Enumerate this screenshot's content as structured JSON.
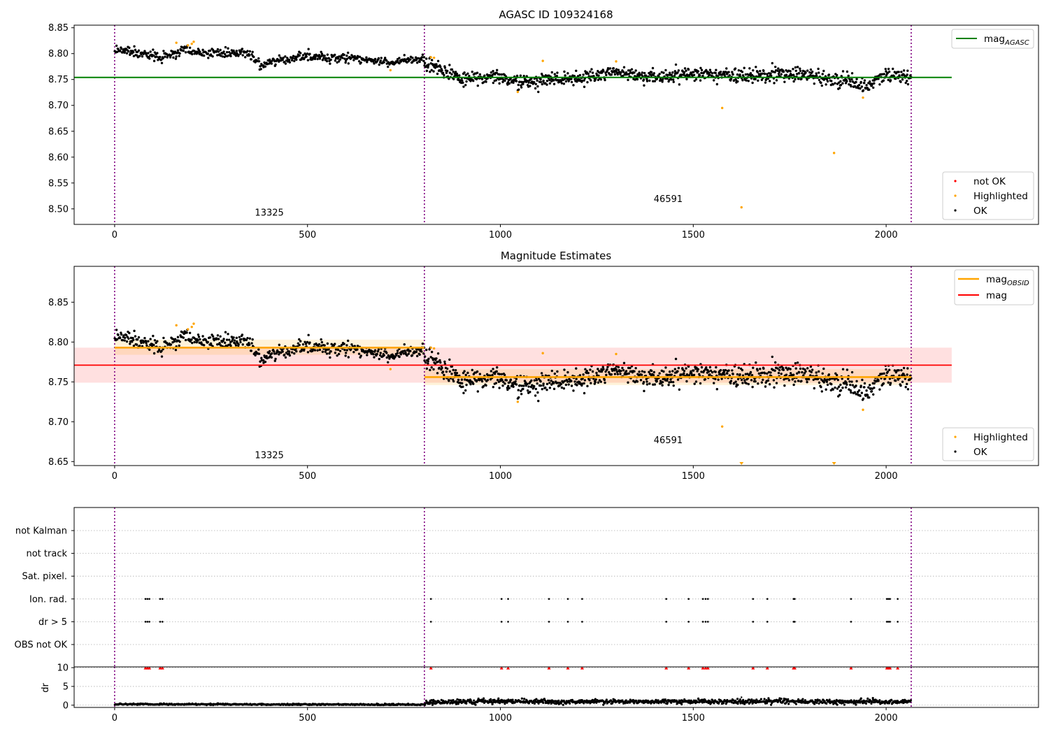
{
  "chart_data": [
    {
      "type": "scatter",
      "title": "AGASC ID 109324168",
      "xlim": [
        -105,
        2395
      ],
      "ylim": [
        8.47,
        8.855
      ],
      "xticks": [
        0,
        500,
        1000,
        1500,
        2000
      ],
      "yticks": [
        8.5,
        8.55,
        8.6,
        8.65,
        8.7,
        8.75,
        8.8,
        8.85
      ],
      "ytick_labels": [
        "8.50",
        "8.55",
        "8.60",
        "8.65",
        "8.70",
        "8.75",
        "8.80",
        "8.85"
      ],
      "obs_boundaries": [
        0,
        803,
        2065
      ],
      "obs_labels": [
        {
          "text": "13325",
          "x": 401,
          "y": 8.487
        },
        {
          "text": "46591",
          "x": 1435,
          "y": 8.513
        }
      ],
      "mag_agasc": {
        "value": 8.754,
        "x_range": [
          -105,
          2170
        ],
        "color": "#008000"
      },
      "series_ok": {
        "name": "OK",
        "color": "#000000",
        "segments": [
          {
            "x_start": 0,
            "x_end": 803,
            "profile": [
              [
                0,
                8.808
              ],
              [
                60,
                8.801
              ],
              [
                120,
                8.793
              ],
              [
                180,
                8.806
              ],
              [
                240,
                8.8
              ],
              [
                300,
                8.803
              ],
              [
                340,
                8.801
              ],
              [
                380,
                8.779
              ],
              [
                440,
                8.788
              ],
              [
                500,
                8.795
              ],
              [
                560,
                8.793
              ],
              [
                620,
                8.792
              ],
              [
                680,
                8.786
              ],
              [
                720,
                8.781
              ],
              [
                760,
                8.789
              ],
              [
                803,
                8.791
              ]
            ],
            "noise": 0.006,
            "n": 520
          },
          {
            "x_start": 803,
            "x_end": 2065,
            "profile": [
              [
                803,
                8.78
              ],
              [
                840,
                8.77
              ],
              [
                900,
                8.751
              ],
              [
                1000,
                8.754
              ],
              [
                1050,
                8.745
              ],
              [
                1100,
                8.75
              ],
              [
                1200,
                8.752
              ],
              [
                1300,
                8.766
              ],
              [
                1400,
                8.753
              ],
              [
                1500,
                8.763
              ],
              [
                1600,
                8.756
              ],
              [
                1700,
                8.759
              ],
              [
                1800,
                8.758
              ],
              [
                1900,
                8.748
              ],
              [
                1940,
                8.735
              ],
              [
                2000,
                8.758
              ],
              [
                2065,
                8.754
              ]
            ],
            "noise": 0.009,
            "n": 920
          }
        ]
      },
      "series_highlighted": {
        "name": "Highlighted",
        "color": "#ffa500",
        "points": [
          [
            160,
            8.821
          ],
          [
            190,
            8.816
          ],
          [
            200,
            8.819
          ],
          [
            205,
            8.823
          ],
          [
            715,
            8.768
          ],
          [
            820,
            8.793
          ],
          [
            828,
            8.792
          ],
          [
            1045,
            8.726
          ],
          [
            1110,
            8.786
          ],
          [
            1300,
            8.785
          ],
          [
            1575,
            8.695
          ],
          [
            1625,
            8.503
          ],
          [
            1865,
            8.608
          ],
          [
            1940,
            8.715
          ]
        ]
      },
      "series_not_ok": {
        "name": "not OK",
        "color": "#ff0000",
        "points": []
      },
      "legend_upper": [
        {
          "label": "mag",
          "sub": "AGASC",
          "color": "#008000"
        }
      ],
      "legend_lower": [
        {
          "label": "not OK",
          "color": "#ff0000"
        },
        {
          "label": "Highlighted",
          "color": "#ffa500"
        },
        {
          "label": "OK",
          "color": "#000000"
        }
      ]
    },
    {
      "type": "scatter",
      "title": "Magnitude Estimates",
      "xlim": [
        -105,
        2395
      ],
      "ylim": [
        8.645,
        8.895
      ],
      "xticks": [
        0,
        500,
        1000,
        1500,
        2000
      ],
      "yticks": [
        8.65,
        8.7,
        8.75,
        8.8,
        8.85
      ],
      "ytick_labels": [
        "8.65",
        "8.70",
        "8.75",
        "8.80",
        "8.85"
      ],
      "obs_boundaries": [
        0,
        803,
        2065
      ],
      "obs_labels": [
        {
          "text": "13325",
          "x": 401,
          "y": 8.654
        },
        {
          "text": "46591",
          "x": 1435,
          "y": 8.673
        }
      ],
      "mag": {
        "value": 8.771,
        "band": [
          8.749,
          8.793
        ],
        "x_range": [
          -105,
          2170
        ],
        "color": "#ff0000"
      },
      "mag_obsid": [
        {
          "x_range": [
            0,
            803
          ],
          "value": 8.793,
          "band": [
            8.784,
            8.803
          ]
        },
        {
          "x_range": [
            803,
            2065
          ],
          "value": 8.756,
          "band": [
            8.746,
            8.766
          ]
        }
      ],
      "series_ok_ref": 0,
      "series_highlighted": {
        "name": "Highlighted",
        "color": "#ffa500",
        "points": [
          [
            160,
            8.821
          ],
          [
            190,
            8.816
          ],
          [
            200,
            8.819
          ],
          [
            205,
            8.823
          ],
          [
            715,
            8.766
          ],
          [
            820,
            8.793
          ],
          [
            828,
            8.792
          ],
          [
            1045,
            8.725
          ],
          [
            1110,
            8.786
          ],
          [
            1300,
            8.785
          ],
          [
            1575,
            8.694
          ],
          [
            1940,
            8.715
          ]
        ],
        "clipped_low": [
          1625,
          1865
        ]
      },
      "legend_upper": [
        {
          "label": "mag",
          "sub": "OBSID",
          "color": "#ffa500"
        },
        {
          "label": "mag",
          "sub": "",
          "color": "#ff0000"
        }
      ],
      "legend_lower": [
        {
          "label": "Highlighted",
          "color": "#ffa500"
        },
        {
          "label": "OK",
          "color": "#000000"
        }
      ]
    },
    {
      "type": "scatter",
      "title": "",
      "xlim": [
        -105,
        2395
      ],
      "flag_rows": [
        "not Kalman",
        "not track",
        "Sat. pixel.",
        "Ion. rad.",
        "dr > 5",
        "OBS not OK"
      ],
      "flag_events_x": [
        80,
        85,
        90,
        118,
        124,
        820,
        1003,
        1020,
        1126,
        1175,
        1212,
        1430,
        1488,
        1525,
        1532,
        1538,
        1655,
        1692,
        1760,
        1763,
        1909,
        2002,
        2006,
        2010,
        2030
      ],
      "flagged_rows": [
        "Ion. rad.",
        "dr > 5"
      ],
      "obs_boundaries": [
        0,
        803,
        2065
      ]
    },
    {
      "type": "scatter",
      "title": "",
      "ylabel": "dr",
      "xlim": [
        -105,
        2395
      ],
      "ylim": [
        -0.6,
        10.2
      ],
      "xticks": [
        0,
        500,
        1000,
        1500,
        2000
      ],
      "yticks": [
        0,
        5,
        10
      ],
      "ytick_labels": [
        "0",
        "5",
        "10"
      ],
      "obs_boundaries": [
        0,
        803,
        2065
      ],
      "dr_profile": [
        [
          0,
          0.25
        ],
        [
          803,
          0.15
        ],
        [
          810,
          0.7
        ],
        [
          900,
          0.9
        ],
        [
          1000,
          1.0
        ],
        [
          1500,
          0.95
        ],
        [
          2065,
          0.95
        ]
      ],
      "dr_noise": 0.3,
      "dr_outlier": [
        1625,
        2.1
      ],
      "clipped_value": 10,
      "clipped_color": "#ff0000",
      "reference_line": 10
    }
  ]
}
